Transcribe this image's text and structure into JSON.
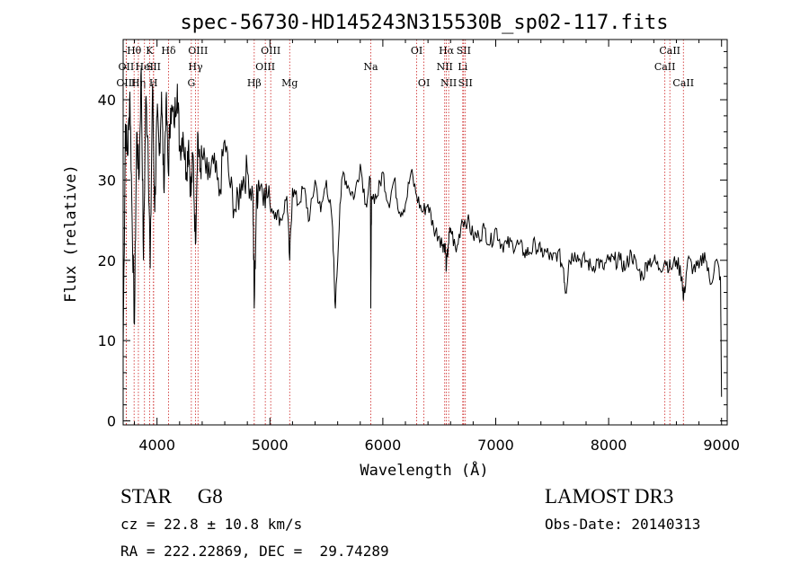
{
  "chart_data": {
    "type": "line",
    "title": "spec-56730-HD145243N315530B_sp02-117.fits",
    "xlabel": "Wavelength (Å)",
    "ylabel": "Flux (relative)",
    "xlim": [
      3700,
      9050
    ],
    "ylim": [
      -0.5,
      47.5
    ],
    "xticks": [
      4000,
      5000,
      6000,
      7000,
      8000,
      9000
    ],
    "yticks": [
      0,
      10,
      20,
      30,
      40
    ],
    "grid": false,
    "series": [
      {
        "name": "spectrum",
        "x": [
          3700,
          3720,
          3740,
          3760,
          3780,
          3800,
          3820,
          3840,
          3860,
          3880,
          3900,
          3920,
          3940,
          3960,
          3980,
          4000,
          4020,
          4040,
          4060,
          4080,
          4100,
          4120,
          4150,
          4180,
          4200,
          4230,
          4260,
          4280,
          4300,
          4320,
          4340,
          4360,
          4380,
          4400,
          4450,
          4500,
          4550,
          4600,
          4650,
          4700,
          4750,
          4800,
          4850,
          4861,
          4880,
          4900,
          4950,
          5000,
          5050,
          5100,
          5150,
          5175,
          5200,
          5250,
          5300,
          5350,
          5400,
          5450,
          5500,
          5550,
          5580,
          5620,
          5650,
          5700,
          5750,
          5800,
          5850,
          5890,
          5893,
          5900,
          5950,
          6000,
          6050,
          6100,
          6150,
          6200,
          6250,
          6300,
          6350,
          6400,
          6450,
          6500,
          6530,
          6550,
          6563,
          6580,
          6600,
          6650,
          6700,
          6750,
          6800,
          6850,
          6900,
          6950,
          7000,
          7050,
          7100,
          7150,
          7200,
          7250,
          7300,
          7350,
          7400,
          7450,
          7500,
          7550,
          7600,
          7620,
          7650,
          7700,
          7750,
          7800,
          7850,
          7900,
          7950,
          8000,
          8050,
          8100,
          8150,
          8200,
          8250,
          8300,
          8350,
          8400,
          8450,
          8500,
          8550,
          8600,
          8650,
          8662,
          8700,
          8750,
          8800,
          8850,
          8900,
          8950,
          8990,
          9000
        ],
        "values": [
          9,
          37,
          33,
          41,
          25,
          12,
          36,
          30,
          44,
          20,
          40,
          35,
          19,
          42,
          26,
          38,
          33,
          41,
          29,
          40,
          31,
          39,
          37,
          42,
          34,
          36,
          31,
          35,
          28,
          33,
          22,
          36,
          31,
          33,
          30,
          32,
          28,
          35,
          29,
          26,
          30,
          31,
          28,
          14,
          27,
          30,
          29,
          27,
          26,
          25,
          28,
          20,
          29,
          27,
          29,
          25,
          30,
          26,
          30,
          25,
          14,
          27,
          31,
          29,
          28,
          32,
          27,
          30,
          14,
          28,
          28,
          31,
          27,
          30,
          26,
          27,
          31,
          28,
          26,
          27,
          24,
          23,
          22,
          22,
          19,
          22,
          24,
          21,
          25,
          25,
          23,
          23,
          24,
          22,
          24,
          22,
          22,
          22,
          22,
          21,
          21,
          22,
          21,
          21,
          20,
          21,
          19,
          16,
          20,
          21,
          20,
          20,
          19,
          20,
          19,
          20,
          20,
          20,
          19,
          21,
          19,
          18,
          20,
          20,
          19,
          20,
          19,
          20,
          18,
          15,
          20,
          19,
          19,
          21,
          17,
          20,
          18,
          3
        ]
      }
    ],
    "lines": [
      {
        "label": "OII",
        "w": 3727,
        "row": 1
      },
      {
        "label": "OIII",
        "w": 3727,
        "row": 2
      },
      {
        "label": "Hθ",
        "w": 3797,
        "row": 0
      },
      {
        "label": "Hη",
        "w": 3835,
        "row": 2
      },
      {
        "label": "HeI",
        "w": 3889,
        "row": 1
      },
      {
        "label": "K",
        "w": 3934,
        "row": 0
      },
      {
        "label": "SII",
        "w": 3970,
        "row": 1
      },
      {
        "label": "H",
        "w": 3968,
        "row": 2
      },
      {
        "label": "Hδ",
        "w": 4102,
        "row": 0
      },
      {
        "label": "OIII",
        "w": 4363,
        "row": 0
      },
      {
        "label": "Hγ",
        "w": 4341,
        "row": 1
      },
      {
        "label": "G",
        "w": 4304,
        "row": 2
      },
      {
        "label": "Hβ",
        "w": 4861,
        "row": 2
      },
      {
        "label": "OIII",
        "w": 4959,
        "row": 1
      },
      {
        "label": "OIII",
        "w": 5007,
        "row": 0
      },
      {
        "label": "Mg",
        "w": 5175,
        "row": 2
      },
      {
        "label": "Na",
        "w": 5893,
        "row": 1
      },
      {
        "label": "OI",
        "w": 6300,
        "row": 0
      },
      {
        "label": "OI",
        "w": 6364,
        "row": 2
      },
      {
        "label": "Hα",
        "w": 6563,
        "row": 0
      },
      {
        "label": "NII",
        "w": 6548,
        "row": 1
      },
      {
        "label": "NII",
        "w": 6583,
        "row": 2
      },
      {
        "label": "SII",
        "w": 6716,
        "row": 0
      },
      {
        "label": "Li",
        "w": 6708,
        "row": 1
      },
      {
        "label": "SII",
        "w": 6731,
        "row": 2
      },
      {
        "label": "CaII",
        "w": 8542,
        "row": 0
      },
      {
        "label": "CaII",
        "w": 8498,
        "row": 1
      },
      {
        "label": "CaII",
        "w": 8662,
        "row": 2
      }
    ]
  },
  "info": {
    "object": "STAR     G8",
    "survey": "LAMOST DR3",
    "cz": "cz = 22.8 ± 10.8 km/s",
    "obsdate": "Obs-Date: 20140313",
    "radec": "RA = 222.22869, DEC =  29.74289"
  }
}
